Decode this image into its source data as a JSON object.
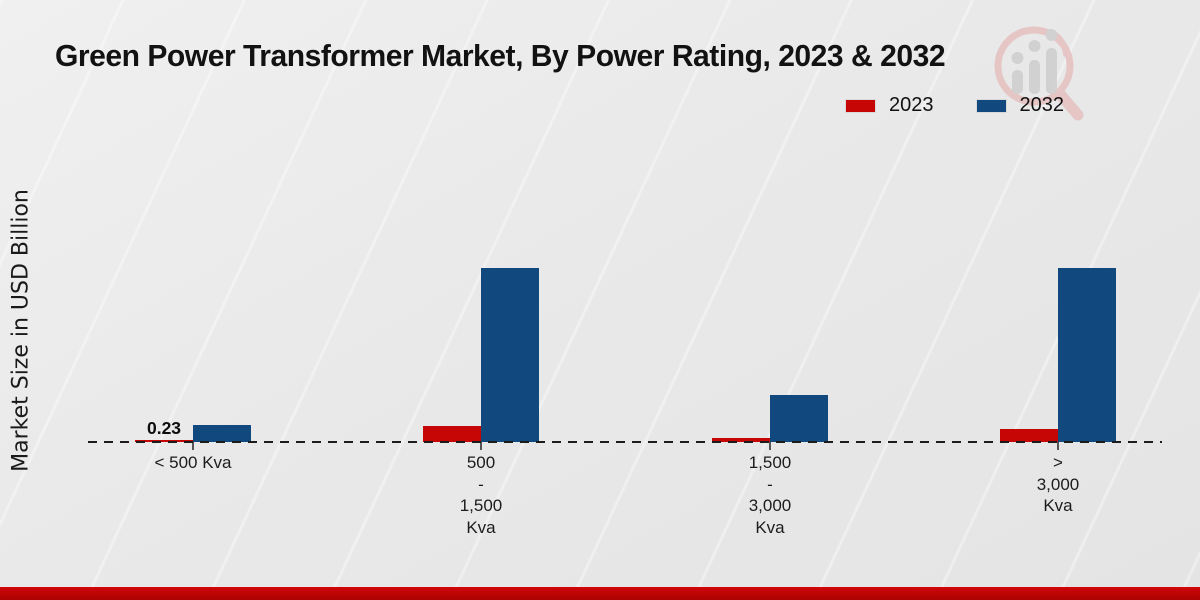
{
  "title": "Green Power Transformer Market, By Power Rating, 2023 & 2032",
  "ylabel": "Market Size in USD Billion",
  "legend": {
    "items": [
      {
        "label": "2023",
        "color": "#c60505"
      },
      {
        "label": "2032",
        "color": "#11497f"
      }
    ]
  },
  "icons": {
    "watermark": "magnifier-bar-chart-logo"
  },
  "footer": {
    "bar_color": "#c40606"
  },
  "chart_data": {
    "type": "bar",
    "title": "Green Power Transformer Market, By Power Rating, 2023 & 2032",
    "xlabel": "",
    "ylabel": "Market Size in USD Billion",
    "categories": [
      "< 500 Kva",
      "500 - 1,500 Kva",
      "1,500 - 3,000 Kva",
      "> 3,000 Kva"
    ],
    "tick_label_lines": [
      [
        "< 500 Kva"
      ],
      [
        "500",
        "-",
        "1,500",
        "Kva"
      ],
      [
        "1,500",
        "-",
        "3,000",
        "Kva"
      ],
      [
        ">",
        "3,000",
        "Kva"
      ]
    ],
    "series": [
      {
        "name": "2023",
        "color": "#c60505",
        "values": [
          0.23,
          1.5,
          0.37,
          1.2
        ]
      },
      {
        "name": "2032",
        "color": "#11497f",
        "values": [
          1.55,
          16.0,
          4.3,
          16.0
        ]
      }
    ],
    "annotations": [
      {
        "series": "2023",
        "category_index": 0,
        "text": "0.23"
      }
    ],
    "ylim": [
      0,
      18
    ],
    "grid": false,
    "legend_position": "top-right",
    "zero_line": "dashed"
  }
}
